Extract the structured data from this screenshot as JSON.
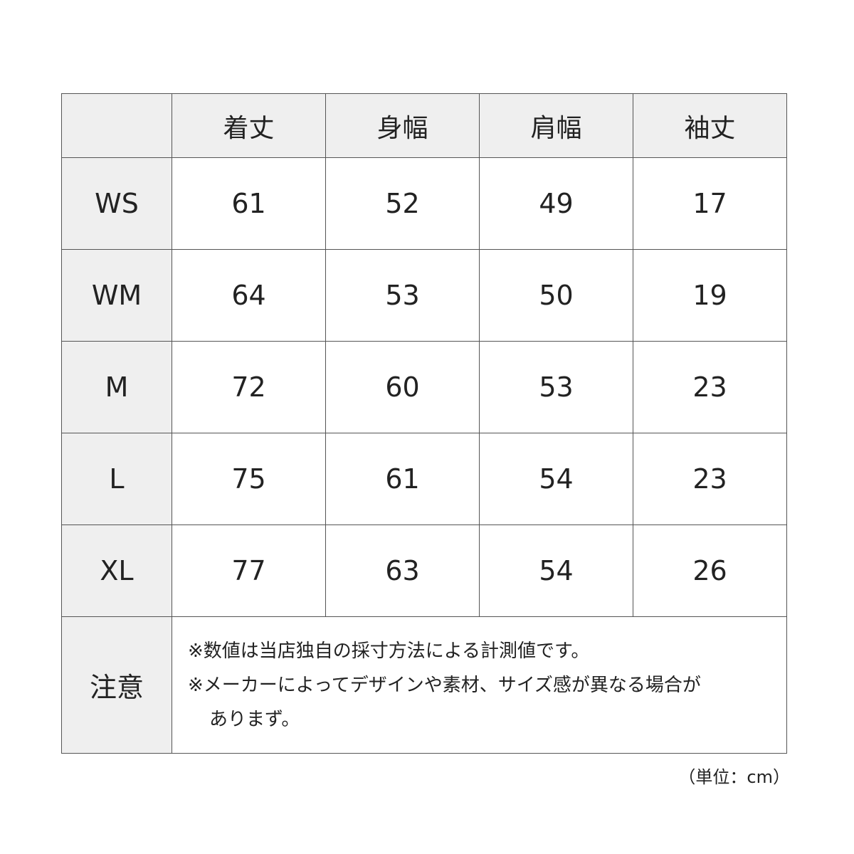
{
  "table": {
    "columns": [
      "",
      "着丈",
      "身幅",
      "肩幅",
      "袖丈"
    ],
    "rows": [
      {
        "size": "WS",
        "values": [
          "61",
          "52",
          "49",
          "17"
        ]
      },
      {
        "size": "WM",
        "values": [
          "64",
          "53",
          "50",
          "19"
        ]
      },
      {
        "size": "M",
        "values": [
          "72",
          "60",
          "53",
          "23"
        ]
      },
      {
        "size": "L",
        "values": [
          "75",
          "61",
          "54",
          "23"
        ]
      },
      {
        "size": "XL",
        "values": [
          "77",
          "63",
          "54",
          "26"
        ]
      }
    ],
    "note_label": "注意",
    "notes": [
      "※数値は当店独自の採寸方法による計測値です。",
      "※メーカーによってデザインや素材、サイズ感が異なる場合が",
      "ありまず。"
    ]
  },
  "unit": "（単位：cm）",
  "colors": {
    "header_bg": "#efefef",
    "border": "#555555"
  }
}
